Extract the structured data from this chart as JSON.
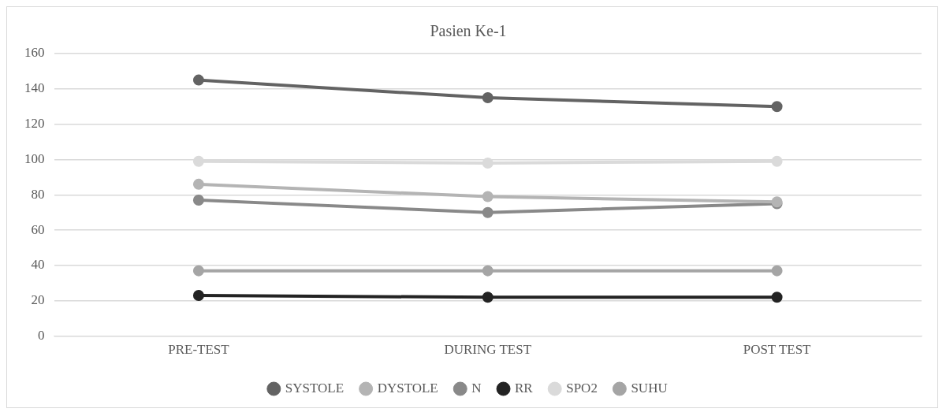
{
  "chart_data": {
    "type": "line",
    "title": "Pasien Ke-1",
    "categories": [
      "PRE-TEST",
      "DURING TEST",
      "POST TEST"
    ],
    "series": [
      {
        "name": "SYSTOLE",
        "color": "#636363",
        "values": [
          145,
          135,
          130
        ]
      },
      {
        "name": "DYSTOLE",
        "color": "#b4b4b4",
        "values": [
          86,
          79,
          76
        ]
      },
      {
        "name": "N",
        "color": "#898989",
        "values": [
          77,
          70,
          75
        ]
      },
      {
        "name": "RR",
        "color": "#232323",
        "values": [
          23,
          22,
          22
        ]
      },
      {
        "name": "SPO2",
        "color": "#dadada",
        "values": [
          99,
          98,
          99
        ]
      },
      {
        "name": "SUHU",
        "color": "#a5a5a5",
        "values": [
          37,
          37,
          37
        ]
      }
    ],
    "ylim": [
      0,
      160
    ],
    "yticks": [
      0,
      20,
      40,
      60,
      80,
      100,
      120,
      140,
      160
    ],
    "grid": "y",
    "legend": "bottom",
    "marker": "circle",
    "line_style": "solid"
  }
}
